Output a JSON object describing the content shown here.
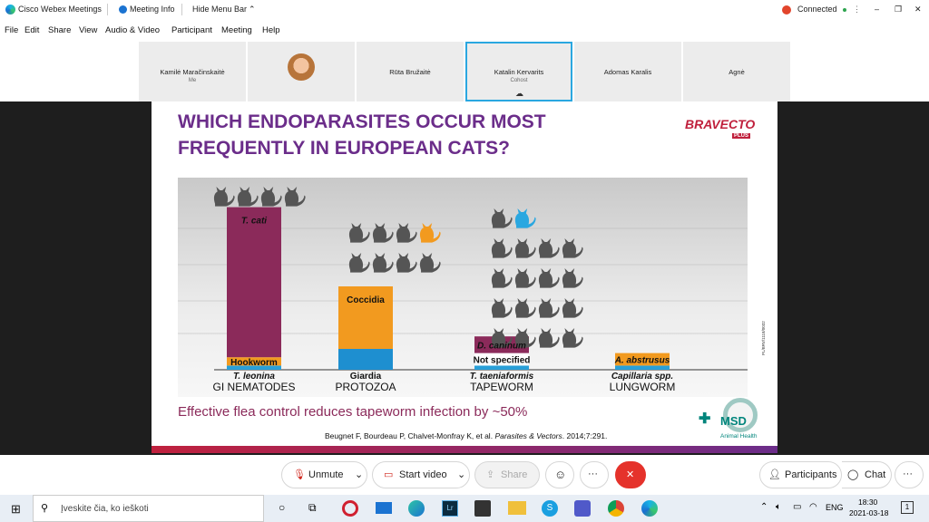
{
  "titlebar": {
    "app": "Cisco Webex Meetings",
    "info": "Meeting Info",
    "hide": "Hide Menu Bar",
    "status": "Connected",
    "min": "–",
    "max": "❐",
    "close": "✕",
    "status_color": "#2ea44f"
  },
  "menu": [
    "File",
    "Edit",
    "Share",
    "View",
    "Audio & Video",
    "Participant",
    "Meeting",
    "Help"
  ],
  "participants": [
    {
      "name": "Kamilė Maračinskaitė",
      "role": "Me"
    },
    {
      "name": "",
      "role": ""
    },
    {
      "name": "Rūta Bružaitė",
      "role": ""
    },
    {
      "name": "Katalin Kervarits",
      "role": "Cohost"
    },
    {
      "name": "Adomas Karalis",
      "role": ""
    },
    {
      "name": "Agnė",
      "role": ""
    }
  ],
  "slide": {
    "title1": "WHICH ENDOPARASITES OCCUR MOST",
    "title2": "FREQUENTLY IN EUROPEAN CATS?",
    "brand": "BRAVECTO",
    "brand_sub": "PLUS",
    "side_code": "PL/BRV/1118/0032",
    "tagline": "Effective flea control reduces tapeworm infection by ~50%",
    "citation_pre": "Beugnet F, Bourdeau P, Chalvet-Monfray K, et al. ",
    "citation_journal": "Parasites & Vectors",
    "citation_post": ". 2014;7:291.",
    "msd": "MSD",
    "msd_sub": "Animal Health",
    "accent": "#8b2a5a",
    "title_color": "#6b2d8a"
  },
  "chart_data": {
    "type": "bar",
    "categories": [
      "GI NEMATODES",
      "PROTOZOA",
      "TAPEWORM",
      "LUNGWORM"
    ],
    "stacks": [
      [
        {
          "label": "T. leonina",
          "value": 1,
          "color": "#29a0d8",
          "italic": true
        },
        {
          "label": "Hookworm",
          "value": 2,
          "color": "#f29a1f",
          "italic": false
        },
        {
          "label": "T. cati",
          "value": 36,
          "color": "#8b2a5a",
          "italic": true
        }
      ],
      [
        {
          "label": "Giardia",
          "value": 5,
          "color": "#1e8fd0",
          "italic": false
        },
        {
          "label": "Coccidia",
          "value": 15,
          "color": "#f29a1f",
          "italic": false
        }
      ],
      [
        {
          "label": "T. taeniaformis",
          "value": 1,
          "color": "#29a0d8",
          "italic": true
        },
        {
          "label": "Not specified",
          "value": 3,
          "color": "#ffffff",
          "italic": false
        },
        {
          "label": "D. caninum",
          "value": 4,
          "color": "#8b2a5a",
          "italic": true
        }
      ],
      [
        {
          "label": "Capillaria spp.",
          "value": 1,
          "color": "#29a0d8",
          "italic": true
        },
        {
          "label": "A. abstrusus",
          "value": 3,
          "color": "#f29a1f",
          "italic": true
        }
      ]
    ]
  },
  "controls": {
    "unmute": "Unmute",
    "video": "Start video",
    "share": "Share",
    "participants": "Participants",
    "chat": "Chat",
    "more": "···"
  },
  "taskbar": {
    "search": "Įveskite čia, ko ieškoti",
    "lang": "ENG",
    "time": "18:30",
    "date": "2021-03-18",
    "notif": "1"
  }
}
